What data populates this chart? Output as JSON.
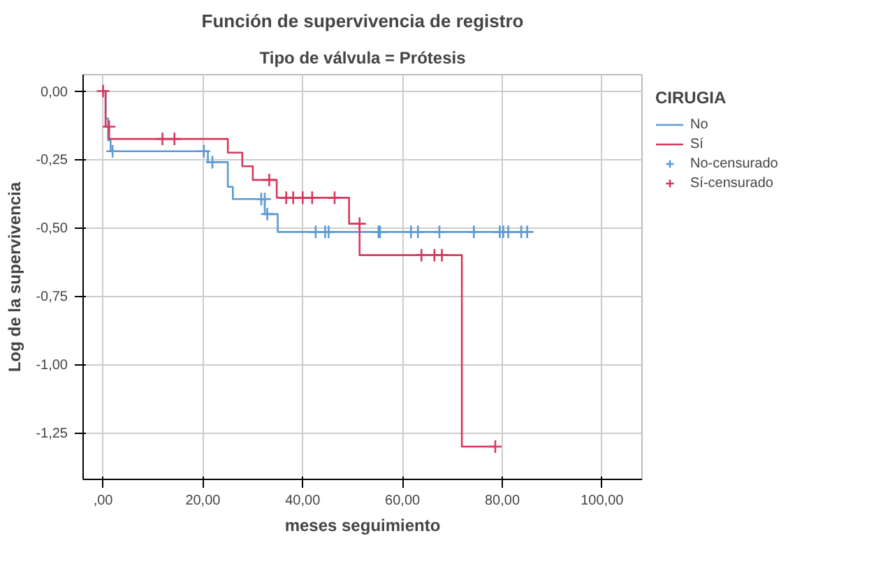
{
  "chart_data": {
    "type": "step",
    "title": "Función de supervivencia de registro",
    "subtitle": "Tipo de válvula = Prótesis",
    "xlabel": "meses seguimiento",
    "ylabel": "Log de la supervivencia",
    "legend_title": "CIRUGIA",
    "legend": "right",
    "grid": true,
    "line_style": "solid",
    "xlim": [
      -4,
      108
    ],
    "ylim": [
      -1.42,
      0.06
    ],
    "xticks": [
      {
        "value": 0,
        "label": ",00"
      },
      {
        "value": 20,
        "label": "20,00"
      },
      {
        "value": 40,
        "label": "40,00"
      },
      {
        "value": 60,
        "label": "60,00"
      },
      {
        "value": 80,
        "label": "80,00"
      },
      {
        "value": 100,
        "label": "100,00"
      }
    ],
    "yticks": [
      {
        "value": 0,
        "label": "0,00"
      },
      {
        "value": -0.25,
        "label": "-0,25"
      },
      {
        "value": -0.5,
        "label": "-0,50"
      },
      {
        "value": -0.75,
        "label": "-0,75"
      },
      {
        "value": -1,
        "label": "-1,00"
      },
      {
        "value": -1.25,
        "label": "-1,25"
      }
    ],
    "series": [
      {
        "name": "No",
        "color": "#5b9bd5",
        "x": [
          0,
          0.5,
          1,
          1.5,
          21,
          25,
          26,
          32.4,
          35,
          85
        ],
        "values": [
          0,
          -0.1,
          -0.18,
          -0.22,
          -0.26,
          -0.35,
          -0.395,
          -0.45,
          -0.515,
          -0.515
        ]
      },
      {
        "name": "Sí",
        "color": "#d6385e",
        "x": [
          0,
          0.5,
          1.2,
          25,
          27.9,
          30,
          34.8,
          49.3,
          51.4,
          71.9,
          78.6
        ],
        "values": [
          0,
          -0.13,
          -0.175,
          -0.225,
          -0.275,
          -0.325,
          -0.39,
          -0.485,
          -0.6,
          -1.3,
          -1.3
        ]
      },
      {
        "name": "No-censurado",
        "type": "scatter",
        "marker": "cross",
        "color": "#5b9bd5",
        "x": [
          1.9,
          20.2,
          21.9,
          31.7,
          32.4,
          32.9,
          42.6,
          44.5,
          45.2,
          55.2,
          55.5,
          61.7,
          63.1,
          67.4,
          74.3,
          79.5,
          80.2,
          81.2,
          83.8,
          85
        ],
        "values": [
          -0.22,
          -0.22,
          -0.26,
          -0.395,
          -0.395,
          -0.45,
          -0.515,
          -0.515,
          -0.515,
          -0.515,
          -0.515,
          -0.515,
          -0.515,
          -0.515,
          -0.515,
          -0.515,
          -0.515,
          -0.515,
          -0.515,
          -0.515
        ]
      },
      {
        "name": "Sí-censurado",
        "type": "scatter",
        "marker": "cross",
        "color": "#d6385e",
        "x": [
          0,
          1.2,
          11.9,
          14.3,
          33.3,
          36.7,
          38.1,
          40,
          41.9,
          46.4,
          51.4,
          63.8,
          66.4,
          67.9,
          78.6
        ],
        "values": [
          0,
          -0.13,
          -0.175,
          -0.175,
          -0.325,
          -0.39,
          -0.39,
          -0.39,
          -0.39,
          -0.39,
          -0.485,
          -0.6,
          -0.6,
          -0.6,
          -1.3
        ]
      }
    ]
  }
}
